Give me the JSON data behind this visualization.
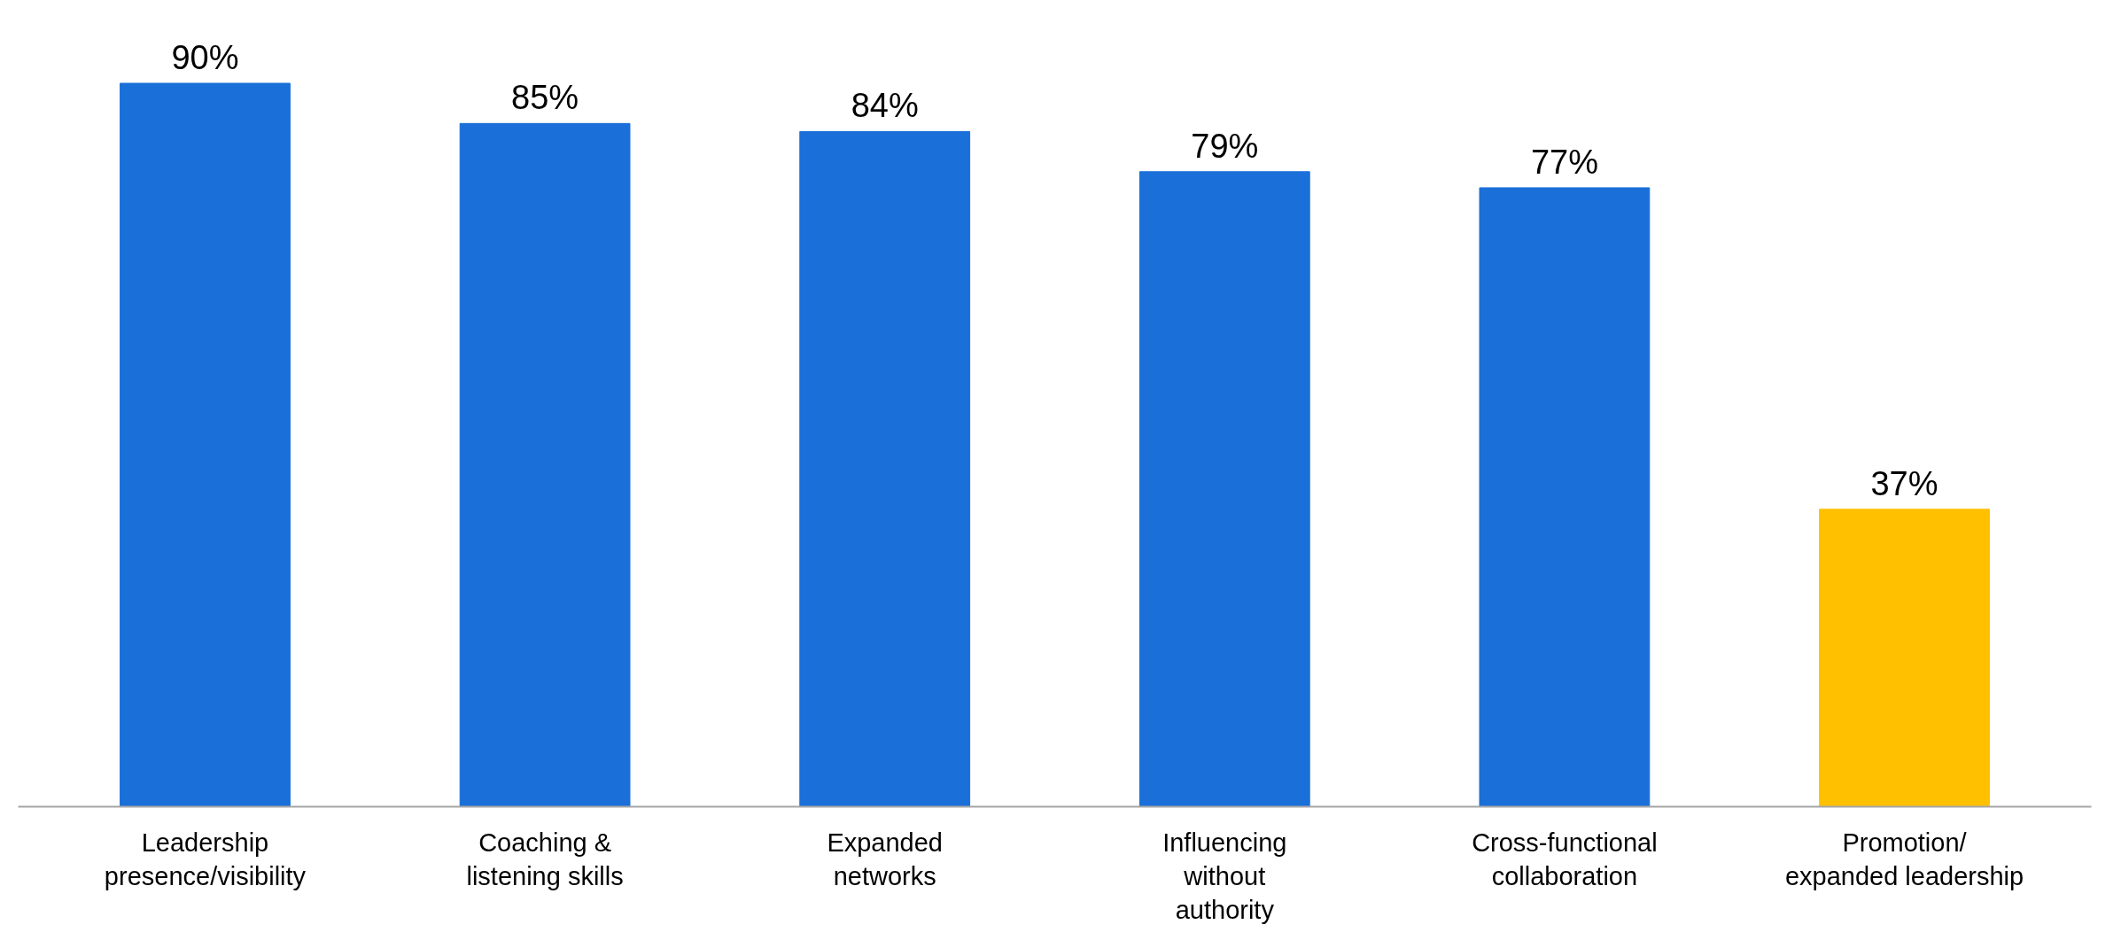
{
  "chart_data": {
    "type": "bar",
    "categories": [
      "Leadership\npresence/visibility",
      "Coaching &\nlistening skills",
      "Expanded\nnetworks",
      "Influencing\nwithout\nauthority",
      "Cross-functional\ncollaboration",
      "Promotion/\nexpanded leadership"
    ],
    "values": [
      90,
      85,
      84,
      79,
      77,
      37
    ],
    "colors": [
      "#1a6fd9",
      "#1a6fd9",
      "#1a6fd9",
      "#1a6fd9",
      "#1a6fd9",
      "#ffc000"
    ],
    "value_labels": [
      "90%",
      "85%",
      "84%",
      "79%",
      "77%",
      "37%"
    ],
    "grid": false
  }
}
